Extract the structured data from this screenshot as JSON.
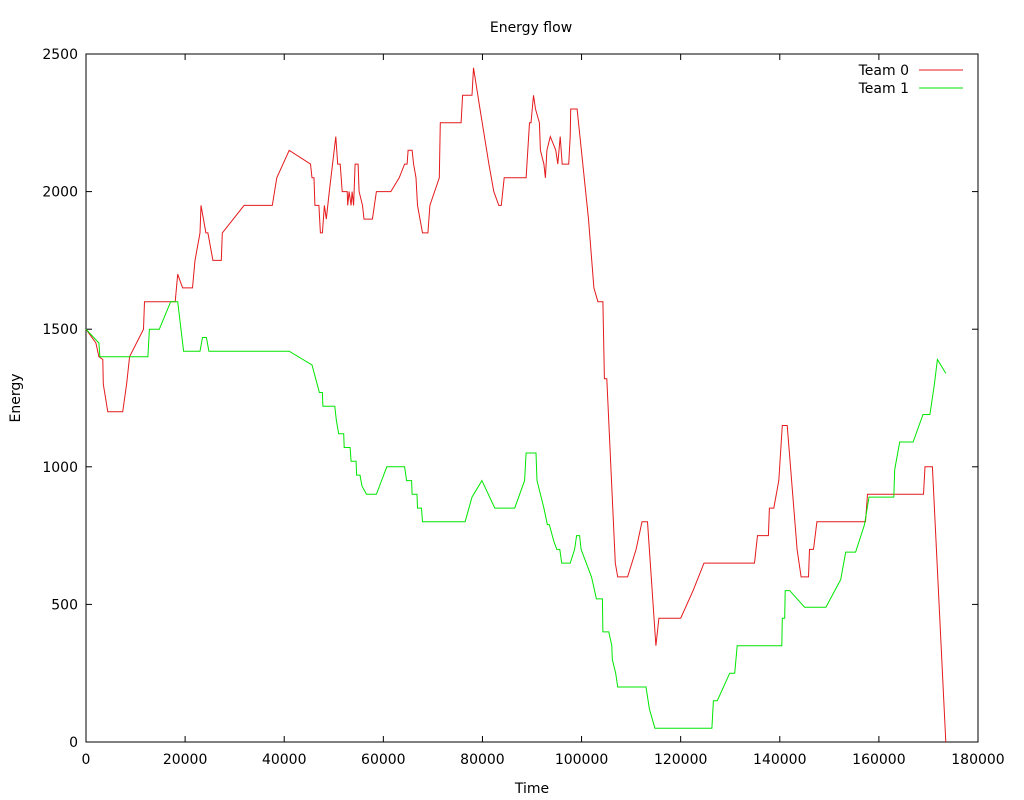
{
  "chart_data": {
    "type": "line",
    "title": "Energy flow",
    "xlabel": "Time",
    "ylabel": "Energy",
    "xlim": [
      0,
      180000
    ],
    "ylim": [
      0,
      2500
    ],
    "xticks": [
      0,
      20000,
      40000,
      60000,
      80000,
      100000,
      120000,
      140000,
      160000,
      180000
    ],
    "yticks": [
      0,
      500,
      1000,
      1500,
      2000,
      2500
    ],
    "grid": false,
    "legend_position": "top-right",
    "series": [
      {
        "name": "Team 0",
        "color": "#e41a1c",
        "points": [
          [
            0,
            1500
          ],
          [
            2000,
            1450
          ],
          [
            2600,
            1400
          ],
          [
            3400,
            1390
          ],
          [
            3500,
            1300
          ],
          [
            4400,
            1200
          ],
          [
            7400,
            1200
          ],
          [
            8200,
            1300
          ],
          [
            8800,
            1400
          ],
          [
            11600,
            1500
          ],
          [
            11800,
            1600
          ],
          [
            18000,
            1600
          ],
          [
            18500,
            1700
          ],
          [
            19500,
            1650
          ],
          [
            21500,
            1650
          ],
          [
            22000,
            1750
          ],
          [
            23000,
            1850
          ],
          [
            23200,
            1950
          ],
          [
            24200,
            1850
          ],
          [
            24600,
            1850
          ],
          [
            25100,
            1800
          ],
          [
            25600,
            1750
          ],
          [
            27300,
            1750
          ],
          [
            27500,
            1850
          ],
          [
            31900,
            1950
          ],
          [
            37600,
            1950
          ],
          [
            38500,
            2050
          ],
          [
            41000,
            2150
          ],
          [
            45300,
            2100
          ],
          [
            45600,
            2050
          ],
          [
            46000,
            2050
          ],
          [
            46200,
            1950
          ],
          [
            47000,
            1950
          ],
          [
            47300,
            1850
          ],
          [
            47700,
            1850
          ],
          [
            48100,
            1950
          ],
          [
            48500,
            1900
          ],
          [
            49100,
            2000
          ],
          [
            50400,
            2200
          ],
          [
            50800,
            2100
          ],
          [
            51300,
            2100
          ],
          [
            51700,
            2000
          ],
          [
            52700,
            2000
          ],
          [
            52800,
            1950
          ],
          [
            53100,
            2000
          ],
          [
            53500,
            1950
          ],
          [
            53700,
            2000
          ],
          [
            54000,
            1950
          ],
          [
            54300,
            2100
          ],
          [
            54900,
            2100
          ],
          [
            55100,
            2000
          ],
          [
            55800,
            1950
          ],
          [
            56100,
            1900
          ],
          [
            57800,
            1900
          ],
          [
            58600,
            2000
          ],
          [
            61500,
            2000
          ],
          [
            63200,
            2050
          ],
          [
            64300,
            2100
          ],
          [
            64800,
            2100
          ],
          [
            65000,
            2150
          ],
          [
            65800,
            2150
          ],
          [
            66100,
            2100
          ],
          [
            66600,
            2050
          ],
          [
            66900,
            1950
          ],
          [
            67900,
            1850
          ],
          [
            69000,
            1850
          ],
          [
            69400,
            1950
          ],
          [
            71300,
            2050
          ],
          [
            71500,
            2250
          ],
          [
            75700,
            2250
          ],
          [
            76000,
            2350
          ],
          [
            77900,
            2350
          ],
          [
            78200,
            2450
          ],
          [
            79500,
            2300
          ],
          [
            81300,
            2100
          ],
          [
            82300,
            2000
          ],
          [
            83300,
            1950
          ],
          [
            83800,
            1950
          ],
          [
            84400,
            2050
          ],
          [
            88800,
            2050
          ],
          [
            89500,
            2250
          ],
          [
            89800,
            2250
          ],
          [
            90300,
            2350
          ],
          [
            90700,
            2300
          ],
          [
            91500,
            2250
          ],
          [
            91700,
            2150
          ],
          [
            92400,
            2100
          ],
          [
            92700,
            2050
          ],
          [
            93000,
            2150
          ],
          [
            93700,
            2200
          ],
          [
            94800,
            2150
          ],
          [
            95200,
            2100
          ],
          [
            95700,
            2200
          ],
          [
            96100,
            2100
          ],
          [
            97400,
            2100
          ],
          [
            97700,
            2200
          ],
          [
            97800,
            2300
          ],
          [
            99100,
            2300
          ],
          [
            101400,
            1900
          ],
          [
            102500,
            1650
          ],
          [
            103300,
            1600
          ],
          [
            104300,
            1600
          ],
          [
            104600,
            1320
          ],
          [
            105100,
            1320
          ],
          [
            106800,
            650
          ],
          [
            107300,
            600
          ],
          [
            109300,
            600
          ],
          [
            111000,
            700
          ],
          [
            112200,
            800
          ],
          [
            113300,
            800
          ],
          [
            115000,
            350
          ],
          [
            115600,
            450
          ],
          [
            120000,
            450
          ],
          [
            122500,
            550
          ],
          [
            124700,
            650
          ],
          [
            134900,
            650
          ],
          [
            135500,
            750
          ],
          [
            137700,
            750
          ],
          [
            137900,
            850
          ],
          [
            138800,
            850
          ],
          [
            139800,
            950
          ],
          [
            140500,
            1150
          ],
          [
            141500,
            1150
          ],
          [
            143500,
            700
          ],
          [
            144300,
            600
          ],
          [
            145800,
            600
          ],
          [
            146000,
            700
          ],
          [
            146800,
            700
          ],
          [
            147500,
            800
          ],
          [
            157300,
            800
          ],
          [
            157700,
            900
          ],
          [
            169000,
            900
          ],
          [
            169300,
            1000
          ],
          [
            170800,
            1000
          ],
          [
            173500,
            0
          ]
        ]
      },
      {
        "name": "Team 1",
        "color": "#00e600",
        "points": [
          [
            0,
            1500
          ],
          [
            2600,
            1450
          ],
          [
            2800,
            1400
          ],
          [
            12500,
            1400
          ],
          [
            12800,
            1500
          ],
          [
            14800,
            1500
          ],
          [
            17100,
            1600
          ],
          [
            18500,
            1600
          ],
          [
            19700,
            1420
          ],
          [
            23000,
            1420
          ],
          [
            23500,
            1470
          ],
          [
            24300,
            1470
          ],
          [
            24800,
            1420
          ],
          [
            41000,
            1420
          ],
          [
            45600,
            1370
          ],
          [
            47100,
            1270
          ],
          [
            47700,
            1270
          ],
          [
            47800,
            1220
          ],
          [
            50200,
            1220
          ],
          [
            50500,
            1170
          ],
          [
            51000,
            1120
          ],
          [
            52000,
            1120
          ],
          [
            52100,
            1070
          ],
          [
            53300,
            1070
          ],
          [
            53500,
            1020
          ],
          [
            54500,
            1020
          ],
          [
            54600,
            970
          ],
          [
            55300,
            970
          ],
          [
            55700,
            930
          ],
          [
            56600,
            900
          ],
          [
            58600,
            900
          ],
          [
            60700,
            1000
          ],
          [
            64300,
            1000
          ],
          [
            64700,
            950
          ],
          [
            65700,
            950
          ],
          [
            65800,
            900
          ],
          [
            66800,
            900
          ],
          [
            66900,
            850
          ],
          [
            67700,
            850
          ],
          [
            67900,
            800
          ],
          [
            76500,
            800
          ],
          [
            77900,
            890
          ],
          [
            79900,
            950
          ],
          [
            82500,
            850
          ],
          [
            86500,
            850
          ],
          [
            88500,
            950
          ],
          [
            88800,
            1050
          ],
          [
            90800,
            1050
          ],
          [
            91000,
            950
          ],
          [
            92400,
            850
          ],
          [
            93100,
            790
          ],
          [
            93500,
            790
          ],
          [
            94400,
            730
          ],
          [
            95000,
            700
          ],
          [
            95600,
            700
          ],
          [
            96000,
            650
          ],
          [
            97700,
            650
          ],
          [
            98600,
            700
          ],
          [
            99000,
            750
          ],
          [
            99600,
            750
          ],
          [
            99900,
            700
          ],
          [
            102000,
            600
          ],
          [
            103000,
            520
          ],
          [
            104200,
            520
          ],
          [
            104300,
            400
          ],
          [
            105500,
            400
          ],
          [
            106100,
            350
          ],
          [
            106200,
            300
          ],
          [
            106900,
            250
          ],
          [
            107300,
            200
          ],
          [
            113000,
            200
          ],
          [
            113700,
            120
          ],
          [
            114800,
            50
          ],
          [
            126300,
            50
          ],
          [
            126600,
            150
          ],
          [
            127400,
            150
          ],
          [
            129900,
            250
          ],
          [
            130900,
            250
          ],
          [
            131400,
            350
          ],
          [
            140400,
            350
          ],
          [
            140500,
            450
          ],
          [
            141000,
            450
          ],
          [
            141100,
            550
          ],
          [
            142000,
            550
          ],
          [
            145000,
            490
          ],
          [
            149300,
            490
          ],
          [
            150800,
            540
          ],
          [
            152300,
            590
          ],
          [
            153300,
            690
          ],
          [
            155300,
            690
          ],
          [
            157100,
            790
          ],
          [
            158000,
            890
          ],
          [
            163000,
            890
          ],
          [
            163200,
            990
          ],
          [
            164200,
            1090
          ],
          [
            166900,
            1090
          ],
          [
            168900,
            1190
          ],
          [
            170300,
            1190
          ],
          [
            171200,
            1300
          ],
          [
            171800,
            1390
          ],
          [
            173500,
            1340
          ]
        ]
      }
    ]
  }
}
